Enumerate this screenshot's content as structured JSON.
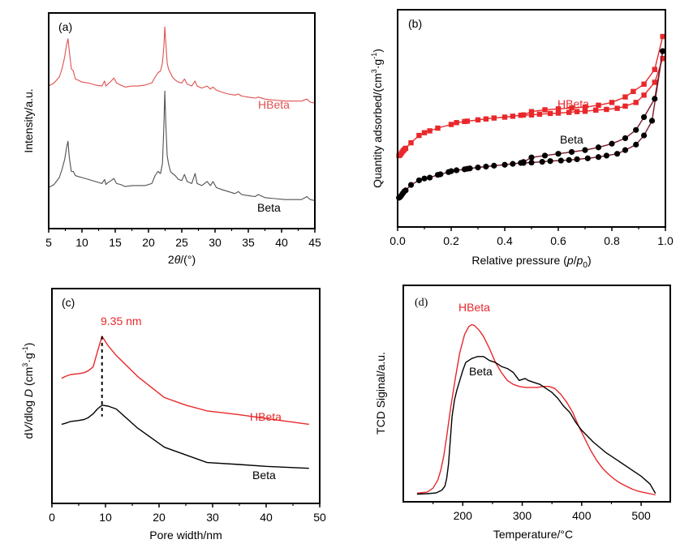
{
  "colors": {
    "red": "#e8282b",
    "red_xrd": "#e05050",
    "black": "#000000",
    "gray_xrd": "#505050",
    "beta_line_b": "#7a1a2a"
  },
  "chart_data": [
    {
      "panel": "(a)",
      "type": "line",
      "title": "",
      "xlabel": "2θ/(°)",
      "ylabel": "Intensity/a.u.",
      "xlim": [
        5,
        45
      ],
      "ylim": [
        0,
        10
      ],
      "xticks": [
        5,
        10,
        15,
        20,
        25,
        30,
        35,
        40,
        45
      ],
      "yticks": [],
      "grid": false,
      "series": [
        {
          "name": "HBeta",
          "color": "#e05050",
          "x": [
            5.0,
            5.8,
            6.6,
            7.0,
            7.4,
            7.7,
            7.9,
            8.1,
            8.4,
            8.7,
            9.0,
            9.4,
            10.0,
            11.0,
            12.0,
            13.0,
            13.4,
            13.6,
            13.9,
            14.4,
            14.8,
            15.2,
            15.8,
            16.5,
            17.5,
            18.5,
            19.5,
            20.5,
            21.0,
            21.4,
            21.8,
            22.1,
            22.3,
            22.45,
            22.6,
            22.8,
            23.0,
            23.3,
            23.6,
            24.0,
            24.5,
            25.0,
            25.4,
            25.8,
            26.5,
            27.0,
            27.3,
            28.0,
            28.8,
            29.3,
            29.7,
            30.2,
            31.0,
            32.0,
            33.0,
            33.5,
            34.0,
            35.0,
            36.0,
            36.5,
            37.5,
            39.0,
            40.5,
            42.0,
            43.0,
            43.8,
            44.3,
            45.0
          ],
          "y": [
            6.85,
            7.0,
            7.3,
            7.7,
            8.3,
            8.9,
            9.2,
            8.6,
            7.7,
            7.6,
            7.2,
            7.15,
            7.05,
            7.0,
            6.9,
            6.85,
            7.1,
            6.85,
            6.95,
            7.1,
            7.25,
            7.0,
            6.9,
            6.8,
            6.85,
            6.85,
            6.9,
            7.0,
            7.3,
            7.5,
            7.6,
            8.0,
            8.8,
            9.8,
            9.0,
            8.0,
            7.7,
            7.5,
            7.3,
            7.15,
            7.05,
            7.0,
            7.2,
            6.95,
            6.85,
            7.1,
            6.85,
            6.75,
            6.85,
            6.7,
            6.8,
            6.65,
            6.55,
            6.45,
            6.4,
            6.45,
            6.35,
            6.3,
            6.25,
            6.3,
            6.2,
            6.15,
            6.1,
            6.1,
            6.1,
            6.2,
            6.05,
            6.0
          ]
        },
        {
          "name": "Beta",
          "color": "#505050",
          "x": [
            5.0,
            5.8,
            6.6,
            7.0,
            7.4,
            7.7,
            7.9,
            8.1,
            8.4,
            8.7,
            9.0,
            9.4,
            10.0,
            11.0,
            12.0,
            13.0,
            13.4,
            13.6,
            13.9,
            14.4,
            14.8,
            15.2,
            15.8,
            16.5,
            17.5,
            18.5,
            19.5,
            20.5,
            21.0,
            21.4,
            21.8,
            22.1,
            22.3,
            22.45,
            22.6,
            22.8,
            23.0,
            23.3,
            23.6,
            24.0,
            24.5,
            25.0,
            25.4,
            25.8,
            26.5,
            27.0,
            27.3,
            28.0,
            28.8,
            29.3,
            29.7,
            30.2,
            31.0,
            32.0,
            33.0,
            33.5,
            34.0,
            35.0,
            36.0,
            36.5,
            37.5,
            39.0,
            40.5,
            42.0,
            43.0,
            43.8,
            44.3,
            45.0
          ],
          "y": [
            1.8,
            1.95,
            2.3,
            2.7,
            3.2,
            3.8,
            4.1,
            3.3,
            2.6,
            2.6,
            2.4,
            2.35,
            2.3,
            2.2,
            2.1,
            2.0,
            2.2,
            1.95,
            2.05,
            2.15,
            2.25,
            2.0,
            1.95,
            1.85,
            1.9,
            1.9,
            1.9,
            2.0,
            2.4,
            2.6,
            2.5,
            3.0,
            4.8,
            6.6,
            5.0,
            3.4,
            3.0,
            2.6,
            2.5,
            2.4,
            2.2,
            2.15,
            2.45,
            2.1,
            2.0,
            2.5,
            2.0,
            1.9,
            2.1,
            1.9,
            2.1,
            1.8,
            1.7,
            1.6,
            1.5,
            1.6,
            1.45,
            1.4,
            1.35,
            1.45,
            1.3,
            1.25,
            1.2,
            1.2,
            1.2,
            1.35,
            1.2,
            1.15
          ]
        }
      ],
      "annotations": [
        {
          "text": "HBeta",
          "x": 36.5,
          "y": 6.9,
          "color": "#e05050"
        },
        {
          "text": "Beta",
          "x": 37.0,
          "y": 1.55,
          "color": "#000000"
        }
      ]
    },
    {
      "panel": "(b)",
      "type": "line",
      "title": "",
      "xlabel": "Relative pressure (p/p0)",
      "ylabel": "Quantity adsorbed/(cm3·g-1)",
      "xlim": [
        0.0,
        1.0
      ],
      "ylim": [
        0,
        100
      ],
      "xticks": [
        0.0,
        0.2,
        0.4,
        0.6,
        0.8,
        1.0
      ],
      "xtick_labels": [
        "0.0",
        "0.2",
        "0.4",
        "0.6",
        "0.8",
        "1.0"
      ],
      "yticks": [],
      "grid": false,
      "series": [
        {
          "name": "HBeta adsorption",
          "color": "#e8282b",
          "marker": "square",
          "x": [
            0.005,
            0.01,
            0.015,
            0.02,
            0.025,
            0.03,
            0.05,
            0.08,
            0.1,
            0.12,
            0.15,
            0.2,
            0.22,
            0.25,
            0.26,
            0.3,
            0.33,
            0.36,
            0.4,
            0.43,
            0.46,
            0.5,
            0.53,
            0.57,
            0.6,
            0.64,
            0.67,
            0.7,
            0.74,
            0.78,
            0.82,
            0.85,
            0.89,
            0.92,
            0.96,
            0.99
          ],
          "y": [
            31,
            31.5,
            32.5,
            33.5,
            34.3,
            35,
            38,
            42,
            43.5,
            44.5,
            46,
            48,
            49,
            49.6,
            49.8,
            50.5,
            51,
            51.5,
            52,
            52.5,
            53,
            53.2,
            53.6,
            54,
            54.2,
            54.6,
            55,
            55.2,
            55.8,
            56.2,
            56.8,
            58,
            60,
            64,
            71,
            84
          ]
        },
        {
          "name": "HBeta desorption",
          "color": "#e8282b",
          "marker": "square",
          "x": [
            0.47,
            0.5,
            0.55,
            0.6,
            0.65,
            0.7,
            0.75,
            0.8,
            0.85,
            0.88,
            0.92,
            0.96,
            0.99
          ],
          "y": [
            53.2,
            55,
            56,
            56.5,
            57,
            57.5,
            58.5,
            60,
            63,
            66,
            70,
            78,
            96
          ]
        },
        {
          "name": "Beta adsorption",
          "color": "#000000",
          "line_color": "#7a1a2a",
          "marker": "circle",
          "x": [
            0.005,
            0.01,
            0.015,
            0.02,
            0.025,
            0.03,
            0.05,
            0.08,
            0.1,
            0.12,
            0.15,
            0.16,
            0.19,
            0.2,
            0.22,
            0.25,
            0.26,
            0.27,
            0.3,
            0.33,
            0.36,
            0.4,
            0.43,
            0.46,
            0.47,
            0.5,
            0.54,
            0.57,
            0.61,
            0.64,
            0.67,
            0.71,
            0.75,
            0.78,
            0.82,
            0.85,
            0.89,
            0.92,
            0.95,
            0.99
          ],
          "y": [
            8,
            8.5,
            9.5,
            10.5,
            11.5,
            12,
            15,
            17.5,
            18.5,
            19,
            20.5,
            20.8,
            22,
            22.5,
            23,
            23.5,
            23.8,
            24,
            24.5,
            25,
            25.5,
            26,
            26.5,
            27,
            27,
            27.2,
            27.6,
            28,
            28.3,
            28.6,
            29,
            29.5,
            30.2,
            31,
            32,
            34,
            37,
            42,
            50,
            88
          ]
        },
        {
          "name": "Beta desorption",
          "color": "#000000",
          "line_color": "#7a1a2a",
          "marker": "circle",
          "x": [
            0.47,
            0.5,
            0.55,
            0.6,
            0.65,
            0.7,
            0.75,
            0.8,
            0.85,
            0.89,
            0.92,
            0.96,
            0.99
          ],
          "y": [
            27.5,
            30,
            31,
            32,
            33,
            34,
            35.5,
            37.5,
            40.5,
            45,
            52,
            62,
            88
          ]
        }
      ],
      "annotations": [
        {
          "text": "HBeta",
          "x": 0.6,
          "y": 58.5,
          "color": "#e8282b"
        },
        {
          "text": "Beta",
          "x": 0.61,
          "y": 40,
          "color": "#000000"
        }
      ]
    },
    {
      "panel": "(c)",
      "type": "line",
      "title": "",
      "xlabel": "Pore width/nm",
      "ylabel": "dV/dlog D (cm3·g-1)",
      "xlim": [
        0,
        50
      ],
      "ylim": [
        0,
        100
      ],
      "xticks": [
        0,
        10,
        20,
        30,
        40,
        50
      ],
      "yticks": [],
      "grid": false,
      "series": [
        {
          "name": "HBeta",
          "color": "#e8282b",
          "x": [
            1.8,
            2.5,
            3.5,
            5.0,
            6.0,
            6.8,
            7.7,
            8.5,
            9.35,
            10.5,
            12.0,
            16.0,
            21.0,
            25.0,
            29.0,
            35.0,
            40.0,
            48.0
          ],
          "y": [
            59,
            60,
            61,
            61.5,
            62,
            63,
            65,
            73,
            81,
            76,
            71,
            60,
            49,
            45,
            42,
            40,
            38,
            35
          ]
        },
        {
          "name": "Beta",
          "color": "#000000",
          "x": [
            1.8,
            2.5,
            3.5,
            5.0,
            6.0,
            6.8,
            7.7,
            8.5,
            9.35,
            10.5,
            12.0,
            16.0,
            21.0,
            25.0,
            29.0,
            35.0,
            40.0,
            48.0
          ],
          "y": [
            35,
            35.5,
            36.5,
            37,
            37.5,
            38.5,
            40.5,
            43,
            45,
            44.5,
            43,
            33,
            23,
            19,
            15,
            14,
            13,
            12
          ]
        }
      ],
      "reference_line": {
        "x": 9.35,
        "style": "dashed",
        "color": "#000000"
      },
      "annotations": [
        {
          "text": "9.35 nm",
          "x": 9.35,
          "y": 86,
          "color": "#e8282b"
        },
        {
          "text": "HBeta",
          "x": 40,
          "y": 41,
          "color": "#e8282b"
        },
        {
          "text": "Beta",
          "x": 40,
          "y": 17.5,
          "color": "#000000"
        }
      ]
    },
    {
      "panel": "(d)",
      "type": "line",
      "title": "",
      "xlabel": "Temperature/°C",
      "ylabel": "TCD Siginal/a.u.",
      "xlim": [
        100,
        549
      ],
      "ylim": [
        0,
        100
      ],
      "xticks": [
        200,
        300,
        400,
        500
      ],
      "minor_xticks": [
        150,
        250,
        350,
        450,
        550
      ],
      "yticks": [],
      "grid": false,
      "series": [
        {
          "name": "HBeta",
          "color": "#e8282b",
          "x": [
            123,
            140,
            150,
            158,
            163,
            168,
            173,
            180,
            188,
            195,
            203,
            210,
            215,
            220,
            228,
            235,
            245,
            255,
            265,
            275,
            285,
            295,
            305,
            315,
            325,
            335,
            345,
            355,
            365,
            375,
            385,
            395,
            405,
            415,
            425,
            435,
            445,
            455,
            465,
            475,
            485,
            495,
            505,
            515,
            524
          ],
          "y": [
            1.5,
            2.0,
            4,
            8,
            13,
            20,
            30,
            45,
            60,
            72,
            81,
            85,
            86,
            85.5,
            83,
            80,
            74,
            67,
            62,
            58,
            56,
            55,
            54.5,
            54.5,
            54.5,
            55,
            55,
            54,
            51,
            47,
            42,
            35,
            29,
            23,
            18,
            14,
            11,
            8.5,
            6.5,
            5,
            3.5,
            2.5,
            1.8,
            1.2,
            0.6
          ]
        },
        {
          "name": "Beta",
          "color": "#000000",
          "x": [
            123,
            140,
            155,
            165,
            170,
            173,
            176,
            179,
            182,
            186,
            190,
            195,
            200,
            205,
            210,
            215,
            220,
            225,
            230,
            235,
            240,
            245,
            255,
            265,
            275,
            285,
            290,
            295,
            300,
            305,
            310,
            320,
            330,
            340,
            350,
            360,
            370,
            380,
            390,
            400,
            420,
            440,
            460,
            480,
            500,
            515,
            524
          ],
          "y": [
            1.0,
            1.2,
            1.6,
            3.0,
            5,
            9,
            16,
            28,
            40,
            48,
            53,
            58,
            63,
            67,
            68,
            69,
            69.5,
            70,
            70,
            70,
            69,
            68,
            67,
            65,
            64,
            62,
            60,
            58,
            58.5,
            59,
            58,
            57,
            56,
            54,
            52,
            49,
            45,
            42,
            37,
            33,
            27,
            22,
            18,
            14,
            10,
            6,
            1.4
          ]
        }
      ],
      "annotations": [
        {
          "text": "HBeta",
          "x": 215,
          "y": 91,
          "color": "#e8282b"
        },
        {
          "text": "Beta",
          "x": 236,
          "y": 74.5,
          "color": "#000000"
        }
      ]
    }
  ],
  "figure": {
    "panel_labels": [
      "(a)",
      "(b)",
      "(c)",
      "(d)"
    ],
    "a": {
      "xlabel_pre": "2",
      "xlabel_theta": "θ",
      "xlabel_post": "/(°)",
      "ylabel": "Intensity/a.u.",
      "label_hbeta": "HBeta",
      "label_beta": "Beta"
    },
    "b": {
      "xlabel_pre": "Relative pressure (",
      "xlabel_p": "p",
      "xlabel_slash": "/",
      "xlabel_p0": "p",
      "xlabel_sub": "0",
      "xlabel_post": ")",
      "ylabel_pre": "Quantity adsorbed/(cm",
      "ylabel_sup3": "3",
      "ylabel_mid": "·g",
      "ylabel_supm1": "-1",
      "ylabel_post": ")",
      "label_hbeta": "HBeta",
      "label_beta": "Beta"
    },
    "c": {
      "xlabel": "Pore width/nm",
      "ylabel_pre": "d",
      "ylabel_V": "V",
      "ylabel_mid": "/dlog ",
      "ylabel_D": "D",
      "ylabel_unit": " (cm",
      "ylabel_sup3": "3",
      "ylabel_g": "·g",
      "ylabel_supm1": "-1",
      "ylabel_post": ")",
      "peak_label": "9.35 nm",
      "label_hbeta": "HBeta",
      "label_beta": "Beta"
    },
    "d": {
      "xlabel": "Temperature/°C",
      "ylabel": "TCD Siginal/a.u.",
      "label_hbeta": "HBeta",
      "label_beta": "Beta"
    }
  }
}
